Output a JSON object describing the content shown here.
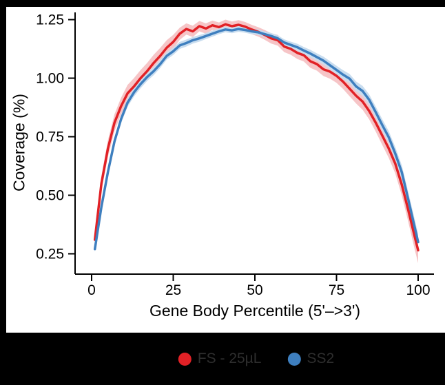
{
  "canvas": {
    "background": "#000000",
    "panel_background": "#ffffff"
  },
  "chart_data": {
    "type": "line",
    "title": "",
    "xlabel": "Gene Body Percentile (5'–>3')",
    "ylabel": "Coverage (%)",
    "legend_position": "bottom",
    "grid": false,
    "xlim": [
      -4,
      105
    ],
    "ylim": [
      0.16,
      1.29
    ],
    "x_ticks": [
      0,
      25,
      50,
      75,
      100
    ],
    "y_tick_values": [
      0.25,
      0.5,
      0.75,
      1.0,
      1.25
    ],
    "y_tick_labels": [
      "0.25",
      "0.50",
      "0.75",
      "1.00",
      "1.25"
    ],
    "x": [
      1,
      3,
      5,
      7,
      9,
      11,
      13,
      15,
      17,
      19,
      21,
      23,
      25,
      27,
      29,
      31,
      33,
      35,
      37,
      39,
      41,
      43,
      45,
      47,
      49,
      51,
      53,
      55,
      57,
      59,
      61,
      63,
      65,
      67,
      69,
      71,
      73,
      75,
      77,
      79,
      81,
      83,
      85,
      87,
      89,
      91,
      93,
      95,
      97,
      99,
      100
    ],
    "series": [
      {
        "name": "FS - 25µL",
        "color": "#e12126",
        "band_color": "#f6c5c7",
        "values": [
          0.31,
          0.55,
          0.7,
          0.81,
          0.88,
          0.935,
          0.965,
          1.0,
          1.03,
          1.065,
          1.095,
          1.13,
          1.155,
          1.19,
          1.21,
          1.2,
          1.222,
          1.212,
          1.226,
          1.218,
          1.23,
          1.222,
          1.228,
          1.22,
          1.208,
          1.198,
          1.185,
          1.17,
          1.162,
          1.135,
          1.125,
          1.108,
          1.098,
          1.072,
          1.06,
          1.038,
          1.028,
          1.01,
          0.985,
          0.955,
          0.925,
          0.9,
          0.86,
          0.81,
          0.755,
          0.7,
          0.635,
          0.545,
          0.435,
          0.32,
          0.265
        ],
        "band_halfwidth": [
          0.02,
          0.032,
          0.036,
          0.036,
          0.036,
          0.036,
          0.036,
          0.035,
          0.035,
          0.035,
          0.034,
          0.032,
          0.03,
          0.026,
          0.024,
          0.024,
          0.022,
          0.022,
          0.02,
          0.02,
          0.02,
          0.02,
          0.02,
          0.02,
          0.02,
          0.02,
          0.021,
          0.022,
          0.023,
          0.024,
          0.025,
          0.026,
          0.027,
          0.028,
          0.028,
          0.029,
          0.03,
          0.03,
          0.031,
          0.032,
          0.033,
          0.035,
          0.036,
          0.038,
          0.04,
          0.04,
          0.042,
          0.046,
          0.05,
          0.055,
          0.055
        ]
      },
      {
        "name": "SS2",
        "color": "#3e7fbf",
        "band_color": "#c9ddef",
        "values": [
          0.27,
          0.45,
          0.6,
          0.73,
          0.825,
          0.895,
          0.94,
          0.975,
          1.005,
          1.03,
          1.06,
          1.095,
          1.115,
          1.14,
          1.15,
          1.162,
          1.17,
          1.18,
          1.19,
          1.2,
          1.208,
          1.204,
          1.21,
          1.206,
          1.2,
          1.196,
          1.188,
          1.18,
          1.17,
          1.152,
          1.142,
          1.132,
          1.118,
          1.105,
          1.09,
          1.075,
          1.055,
          1.035,
          1.015,
          0.998,
          0.965,
          0.945,
          0.908,
          0.855,
          0.8,
          0.748,
          0.678,
          0.598,
          0.48,
          0.36,
          0.3
        ],
        "band_halfwidth": [
          0.012,
          0.016,
          0.018,
          0.018,
          0.018,
          0.018,
          0.018,
          0.018,
          0.017,
          0.017,
          0.017,
          0.016,
          0.016,
          0.015,
          0.015,
          0.014,
          0.014,
          0.013,
          0.013,
          0.012,
          0.012,
          0.012,
          0.012,
          0.012,
          0.012,
          0.012,
          0.012,
          0.013,
          0.013,
          0.014,
          0.014,
          0.015,
          0.015,
          0.016,
          0.016,
          0.017,
          0.018,
          0.018,
          0.019,
          0.02,
          0.021,
          0.022,
          0.023,
          0.024,
          0.025,
          0.026,
          0.028,
          0.03,
          0.032,
          0.034,
          0.035
        ]
      }
    ]
  },
  "legend": {
    "text_color": "#2e2e2e"
  }
}
